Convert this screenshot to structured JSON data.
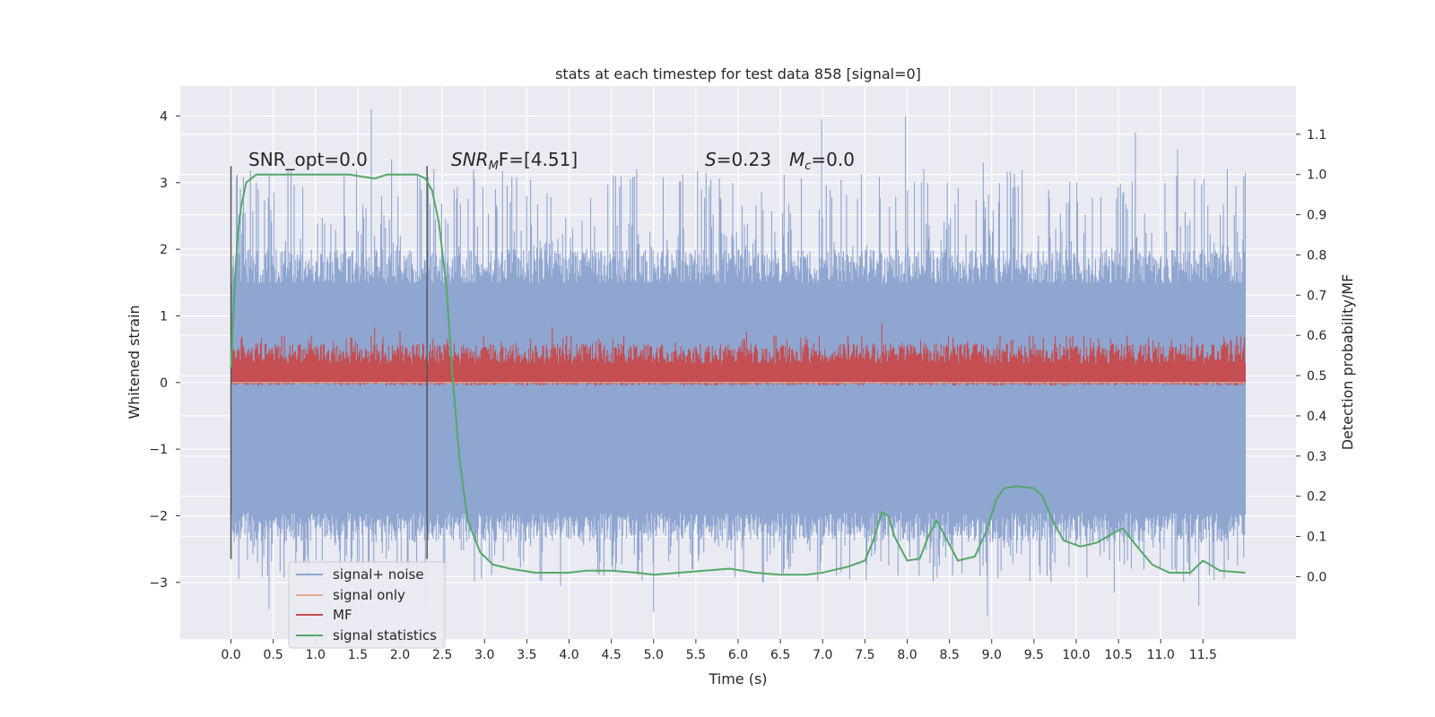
{
  "chart_data": {
    "type": "line",
    "title": "stats at each timestep for test data 858 [signal=0]",
    "xlabel": "Time (s)",
    "ylabel_left": "Whitened strain",
    "ylabel_right": "Detection probability/MF",
    "xlim": [
      -0.6,
      12.6
    ],
    "ylim_left": [
      -3.85,
      4.45
    ],
    "ylim_right": [
      -0.155,
      1.22
    ],
    "x_ticks": [
      "0.0",
      "0.5",
      "1.0",
      "1.5",
      "2.0",
      "2.5",
      "3.0",
      "3.5",
      "4.0",
      "4.5",
      "5.0",
      "5.5",
      "6.0",
      "6.5",
      "7.0",
      "7.5",
      "8.0",
      "8.5",
      "9.0",
      "9.5",
      "10.0",
      "10.5",
      "11.0",
      "11.5"
    ],
    "y_ticks_left": [
      "4",
      "3",
      "2",
      "1",
      "0",
      "−1",
      "−2",
      "−3"
    ],
    "y_ticks_right": [
      "1.1",
      "1.0",
      "0.9",
      "0.8",
      "0.7",
      "0.6",
      "0.5",
      "0.4",
      "0.3",
      "0.2",
      "0.1",
      "0.0"
    ],
    "grid": true,
    "legend_position": "lower-left",
    "annotations": {
      "snr_opt": "SNR_opt=0.0",
      "snr_mf_main": "SNR",
      "snr_mf_sub": "M",
      "snr_mf_rest": "F=[4.51]",
      "s_main": "S",
      "s_rest": "=0.23",
      "mc_main": "M",
      "mc_sub": "c",
      "mc_rest": "=0.0"
    },
    "vertical_markers": [
      {
        "x": 0.0,
        "y_range": [
          -2.65,
          3.25
        ]
      },
      {
        "x": 2.32,
        "y_range": [
          -2.65,
          3.25
        ]
      }
    ],
    "series": [
      {
        "name": "signal+ noise",
        "axis": "left",
        "color": "#8fa6d0",
        "description_values": "noise band approximately -1.9 to 1.5 with spikes up to 4.1 and down to -3.5",
        "x_range": [
          0.0,
          12.0
        ],
        "spikes_up": [
          [
            0.3,
            3.0
          ],
          [
            1.66,
            4.1
          ],
          [
            1.9,
            3.35
          ],
          [
            2.4,
            3.2
          ],
          [
            6.99,
            3.95
          ],
          [
            7.98,
            4.0
          ],
          [
            10.7,
            3.75
          ],
          [
            11.2,
            3.5
          ],
          [
            12.0,
            3.15
          ],
          [
            4.8,
            3.2
          ],
          [
            8.9,
            3.3
          ]
        ],
        "spikes_down": [
          [
            0.45,
            -3.4
          ],
          [
            2.3,
            -3.3
          ],
          [
            5.0,
            -3.45
          ],
          [
            8.95,
            -3.5
          ],
          [
            10.45,
            -3.15
          ],
          [
            11.45,
            -3.35
          ],
          [
            3.9,
            -3.05
          ],
          [
            6.3,
            -3.0
          ]
        ]
      },
      {
        "name": "signal only",
        "axis": "left",
        "color": "#eea98e",
        "values_note": "flat zero"
      },
      {
        "name": "MF",
        "axis": "right",
        "color": "#c44e52",
        "baseline": 0.5,
        "spikes": [
          [
            0.6,
            0.6
          ],
          [
            1.7,
            0.62
          ],
          [
            2.0,
            0.61
          ],
          [
            3.8,
            0.62
          ],
          [
            6.1,
            0.61
          ],
          [
            7.7,
            0.63
          ],
          [
            10.6,
            0.6
          ],
          [
            11.9,
            0.6
          ]
        ]
      },
      {
        "name": "signal statistics",
        "axis": "right",
        "color": "#55a868",
        "x": [
          0.0,
          0.05,
          0.08,
          0.12,
          0.18,
          0.3,
          0.6,
          1.0,
          1.4,
          1.7,
          1.85,
          2.0,
          2.2,
          2.3,
          2.38,
          2.46,
          2.55,
          2.62,
          2.7,
          2.8,
          2.95,
          3.1,
          3.3,
          3.6,
          3.8,
          4.0,
          4.2,
          4.5,
          4.8,
          5.0,
          5.3,
          5.6,
          5.9,
          6.2,
          6.5,
          6.8,
          7.0,
          7.3,
          7.5,
          7.6,
          7.7,
          7.78,
          7.85,
          8.0,
          8.15,
          8.25,
          8.35,
          8.45,
          8.6,
          8.8,
          8.95,
          9.05,
          9.15,
          9.3,
          9.5,
          9.6,
          9.72,
          9.85,
          10.05,
          10.25,
          10.45,
          10.55,
          10.7,
          10.9,
          11.1,
          11.35,
          11.5,
          11.7,
          12.0
        ],
        "y": [
          0.52,
          0.75,
          0.85,
          0.92,
          0.98,
          1.0,
          1.0,
          1.0,
          1.0,
          0.99,
          1.0,
          1.0,
          1.0,
          0.99,
          0.96,
          0.88,
          0.72,
          0.5,
          0.3,
          0.14,
          0.06,
          0.03,
          0.02,
          0.01,
          0.01,
          0.01,
          0.015,
          0.015,
          0.01,
          0.005,
          0.01,
          0.015,
          0.02,
          0.01,
          0.005,
          0.005,
          0.01,
          0.025,
          0.04,
          0.09,
          0.16,
          0.15,
          0.1,
          0.04,
          0.045,
          0.1,
          0.14,
          0.1,
          0.04,
          0.05,
          0.12,
          0.19,
          0.22,
          0.225,
          0.22,
          0.2,
          0.14,
          0.09,
          0.075,
          0.085,
          0.11,
          0.12,
          0.08,
          0.03,
          0.01,
          0.01,
          0.04,
          0.015,
          0.01
        ]
      }
    ]
  }
}
